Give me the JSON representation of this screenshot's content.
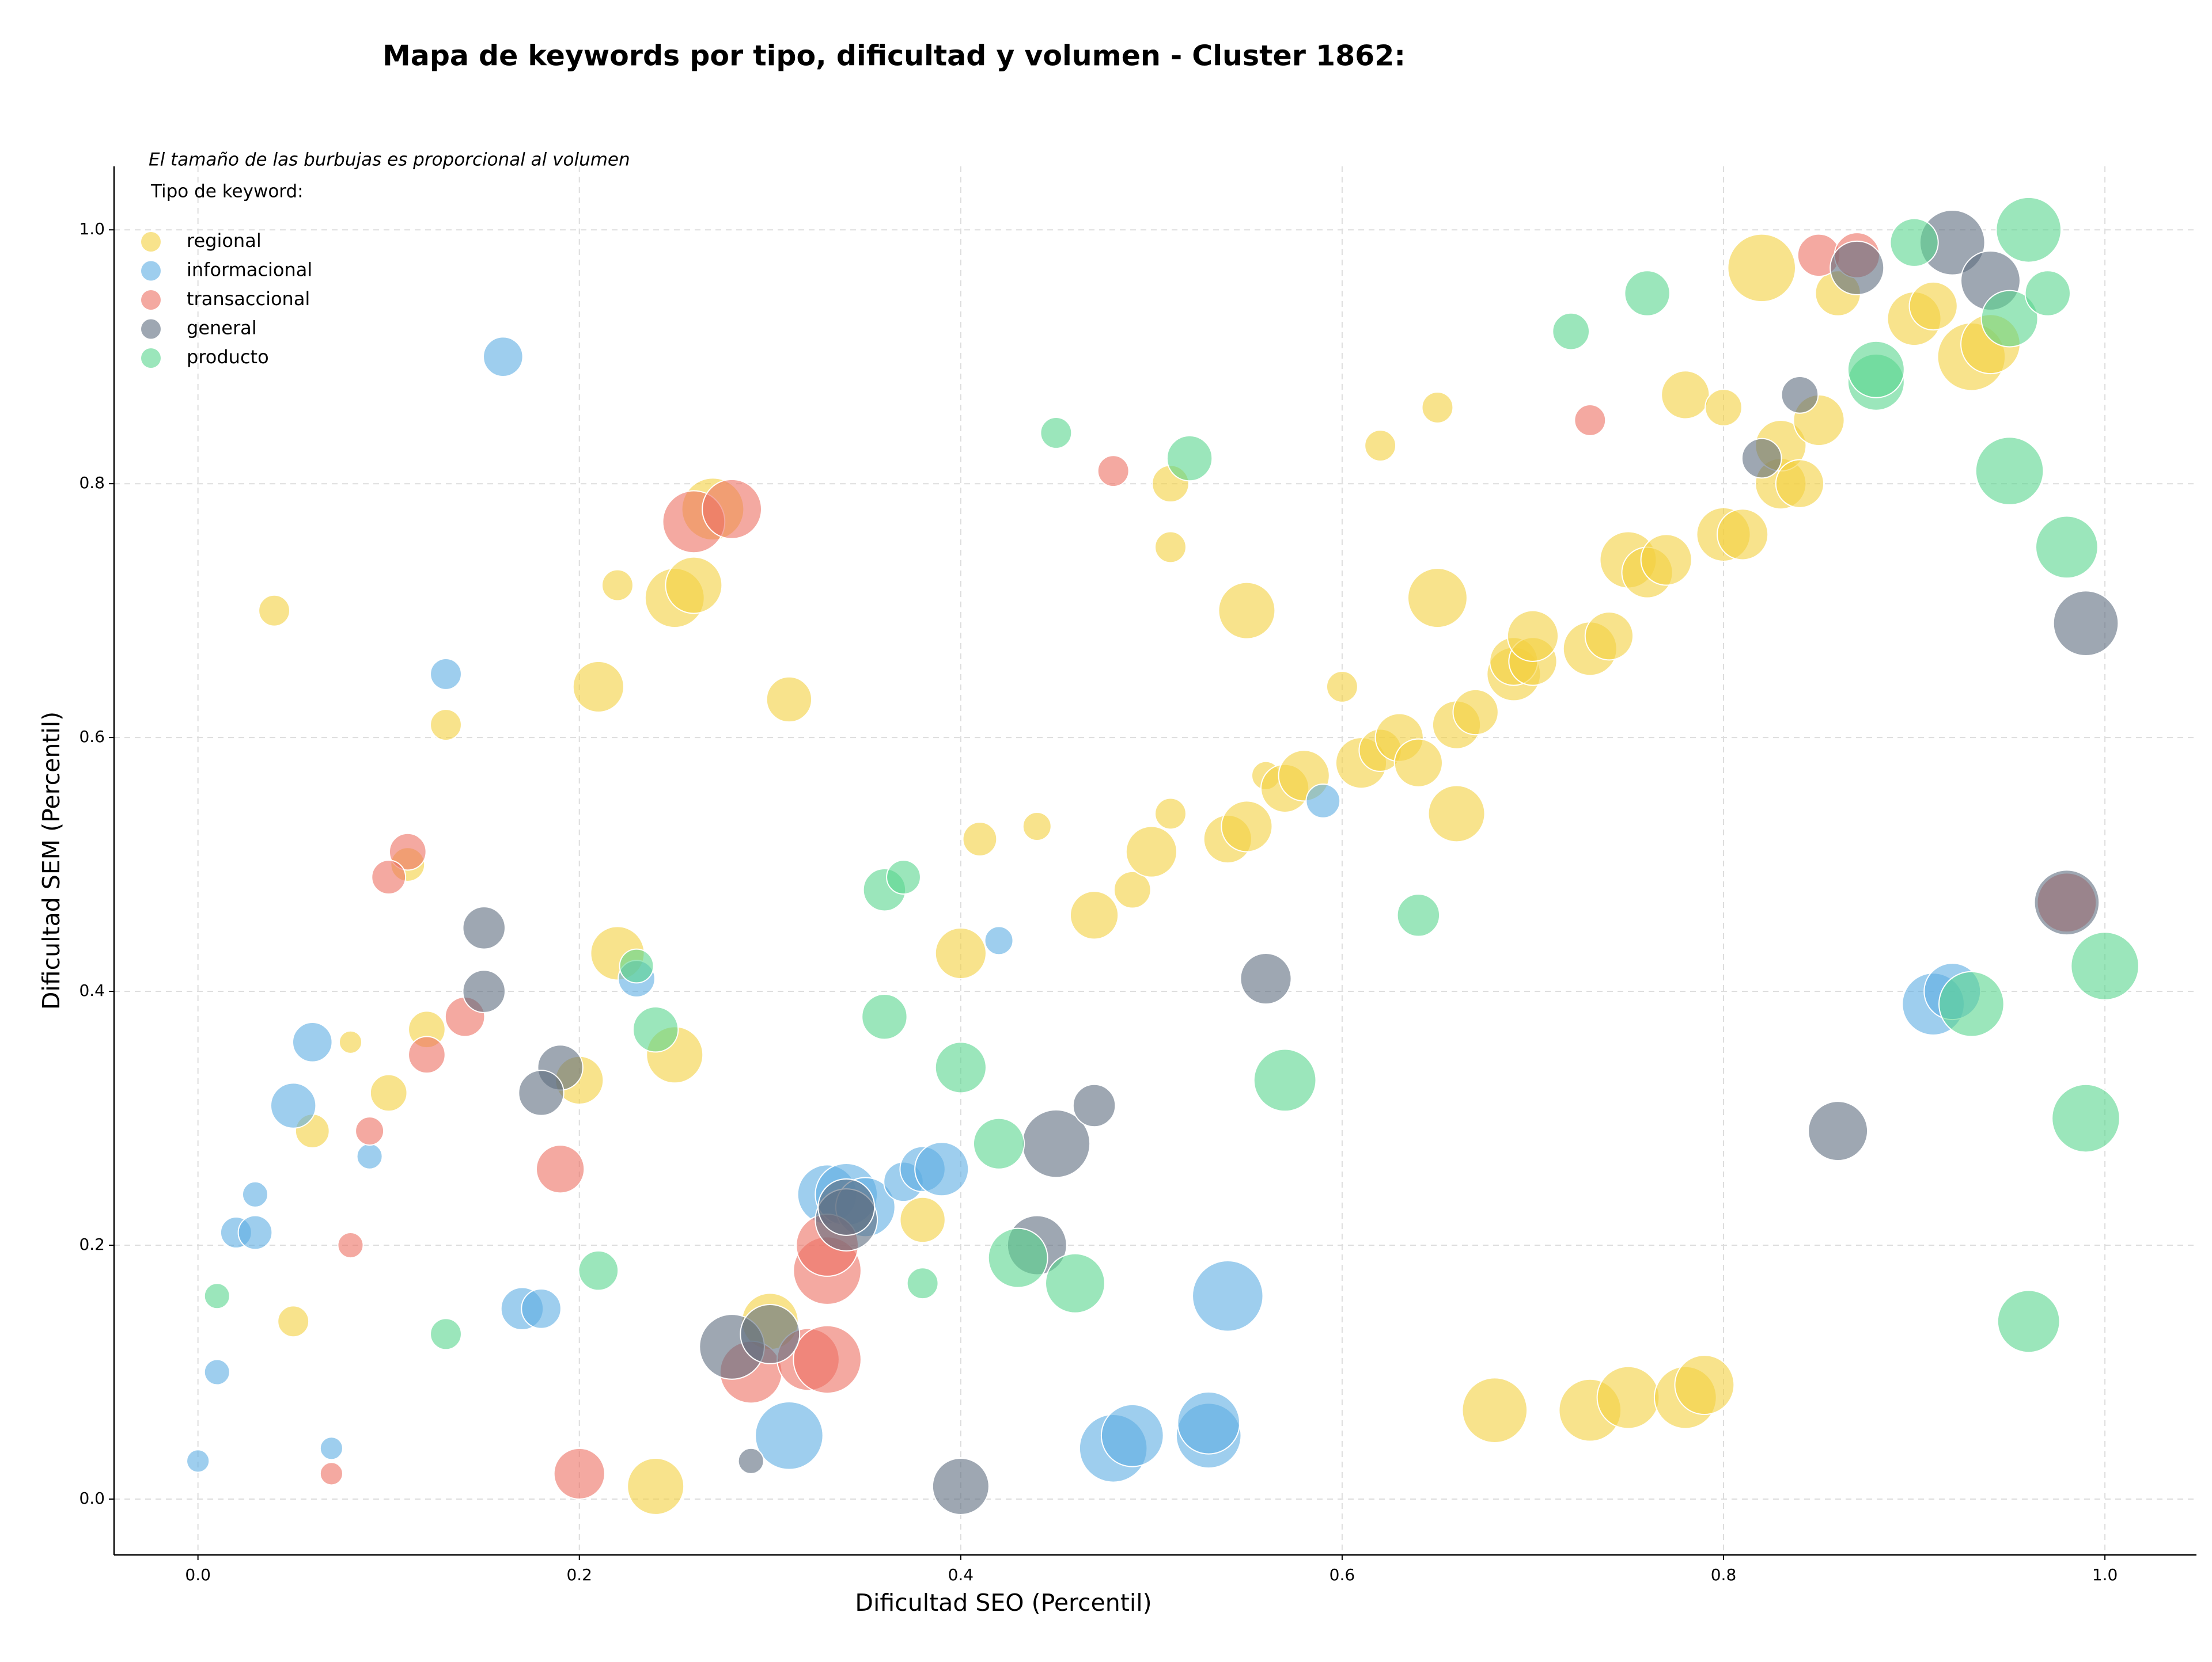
{
  "chart_data": {
    "type": "scatter",
    "title": "Mapa de keywords por tipo, dificultad y volumen - Cluster 1862:",
    "annotation": "El tamaño de las burbujas es proporcional al volumen",
    "legend_title": "Tipo de keyword:",
    "legend_position": "upper left",
    "x_label": "Dificultad SEO (Percentil)",
    "y_label": "Dificultad SEM (Percentil)",
    "xlim": [
      -0.044,
      1.048
    ],
    "ylim": [
      -0.044,
      1.05
    ],
    "xticks": [
      {
        "value": 0,
        "label": "0.0"
      },
      0.2,
      0.4,
      0.6,
      0.8,
      {
        "value": 1,
        "label": "1.0"
      }
    ],
    "yticks": [
      {
        "value": 0,
        "label": "0.0"
      },
      0.2,
      0.4,
      0.6,
      0.8,
      {
        "value": 1,
        "label": "1.0"
      }
    ],
    "grid": true,
    "series": [
      {
        "name": "regional",
        "color": "#f4d03f",
        "x": [
          0.04,
          0.08,
          0.05,
          0.06,
          0.1,
          0.11,
          0.12,
          0.13,
          0.2,
          0.21,
          0.22,
          0.22,
          0.25,
          0.25,
          0.26,
          0.27,
          0.24,
          0.31,
          0.3,
          0.38,
          0.4,
          0.41,
          0.44,
          0.47,
          0.49,
          0.5,
          0.51,
          0.51,
          0.51,
          0.54,
          0.55,
          0.55,
          0.56,
          0.57,
          0.58,
          0.6,
          0.61,
          0.62,
          0.63,
          0.64,
          0.62,
          0.65,
          0.65,
          0.66,
          0.66,
          0.67,
          0.69,
          0.69,
          0.7,
          0.7,
          0.73,
          0.74,
          0.75,
          0.76,
          0.77,
          0.78,
          0.8,
          0.8,
          0.81,
          0.83,
          0.83,
          0.84,
          0.85,
          0.86,
          0.82,
          0.9,
          0.91,
          0.93,
          0.94,
          0.68,
          0.73,
          0.75,
          0.78,
          0.79
        ],
        "values": [
          0.7,
          0.36,
          0.14,
          0.29,
          0.32,
          0.5,
          0.37,
          0.61,
          0.33,
          0.64,
          0.72,
          0.43,
          0.35,
          0.71,
          0.72,
          0.78,
          0.01,
          0.63,
          0.14,
          0.22,
          0.43,
          0.52,
          0.53,
          0.46,
          0.48,
          0.51,
          0.8,
          0.75,
          0.54,
          0.52,
          0.53,
          0.7,
          0.57,
          0.56,
          0.57,
          0.64,
          0.58,
          0.59,
          0.6,
          0.58,
          0.83,
          0.86,
          0.71,
          0.61,
          0.54,
          0.62,
          0.65,
          0.66,
          0.66,
          0.68,
          0.67,
          0.68,
          0.74,
          0.73,
          0.74,
          0.87,
          0.86,
          0.76,
          0.76,
          0.8,
          0.83,
          0.8,
          0.85,
          0.95,
          0.97,
          0.93,
          0.94,
          0.9,
          0.91,
          0.07,
          0.07,
          0.08,
          0.08,
          0.09
        ],
        "sizes": [
          11,
          8,
          11,
          12,
          13,
          12,
          13,
          11,
          17,
          18,
          11,
          19,
          20,
          21,
          20,
          22,
          20,
          16,
          20,
          16,
          18,
          12,
          10,
          17,
          13,
          18,
          13,
          11,
          11,
          17,
          18,
          20,
          10,
          17,
          18,
          11,
          18,
          15,
          17,
          17,
          11,
          11,
          21,
          17,
          20,
          16,
          19,
          17,
          17,
          18,
          19,
          17,
          20,
          18,
          18,
          17,
          13,
          19,
          18,
          18,
          18,
          17,
          18,
          16,
          24,
          19,
          17,
          24,
          21,
          23,
          22,
          22,
          22,
          21
        ]
      },
      {
        "name": "informacional",
        "color": "#5dade2",
        "x": [
          0.16,
          0.13,
          0.06,
          0.05,
          0.09,
          0.03,
          0.02,
          0.03,
          0.01,
          0.0,
          0.07,
          0.17,
          0.18,
          0.23,
          0.42,
          0.59,
          0.31,
          0.33,
          0.34,
          0.35,
          0.37,
          0.38,
          0.39,
          0.48,
          0.49,
          0.53,
          0.53,
          0.54,
          0.91,
          0.92
        ],
        "values": [
          0.9,
          0.65,
          0.36,
          0.31,
          0.27,
          0.24,
          0.21,
          0.21,
          0.1,
          0.03,
          0.04,
          0.15,
          0.15,
          0.41,
          0.44,
          0.55,
          0.05,
          0.24,
          0.24,
          0.23,
          0.25,
          0.26,
          0.26,
          0.04,
          0.05,
          0.05,
          0.06,
          0.16,
          0.39,
          0.4
        ],
        "sizes": [
          14,
          11,
          14,
          16,
          9,
          9,
          11,
          12,
          9,
          8,
          8,
          15,
          14,
          13,
          10,
          12,
          24,
          21,
          22,
          21,
          14,
          16,
          19,
          24,
          22,
          23,
          22,
          25,
          22,
          20
        ]
      },
      {
        "name": "transaccional",
        "color": "#ec7063",
        "x": [
          0.11,
          0.1,
          0.12,
          0.14,
          0.09,
          0.08,
          0.07,
          0.19,
          0.2,
          0.26,
          0.28,
          0.48,
          0.29,
          0.32,
          0.33,
          0.33,
          0.33,
          0.73,
          0.85,
          0.87,
          0.98
        ],
        "values": [
          0.51,
          0.49,
          0.35,
          0.38,
          0.29,
          0.2,
          0.02,
          0.26,
          0.02,
          0.77,
          0.78,
          0.81,
          0.1,
          0.11,
          0.11,
          0.18,
          0.2,
          0.85,
          0.98,
          0.98,
          0.47
        ],
        "sizes": [
          13,
          12,
          13,
          14,
          10,
          9,
          8,
          17,
          18,
          22,
          21,
          11,
          22,
          22,
          24,
          24,
          22,
          11,
          15,
          16,
          21
        ]
      },
      {
        "name": "general",
        "color": "#5d6d7e",
        "x": [
          0.15,
          0.15,
          0.19,
          0.18,
          0.28,
          0.3,
          0.29,
          0.34,
          0.34,
          0.44,
          0.45,
          0.47,
          0.4,
          0.56,
          0.86,
          0.82,
          0.84,
          0.87,
          0.92,
          0.94,
          0.99,
          0.98
        ],
        "values": [
          0.45,
          0.4,
          0.34,
          0.32,
          0.12,
          0.13,
          0.03,
          0.22,
          0.23,
          0.2,
          0.28,
          0.31,
          0.01,
          0.41,
          0.29,
          0.82,
          0.87,
          0.97,
          0.99,
          0.96,
          0.69,
          0.47
        ],
        "sizes": [
          15,
          15,
          16,
          16,
          23,
          21,
          9,
          22,
          20,
          21,
          24,
          15,
          20,
          18,
          21,
          14,
          13,
          19,
          23,
          21,
          23,
          23
        ]
      },
      {
        "name": "producto",
        "color": "#58d68d",
        "x": [
          0.01,
          0.13,
          0.21,
          0.23,
          0.24,
          0.36,
          0.36,
          0.37,
          0.38,
          0.4,
          0.42,
          0.43,
          0.46,
          0.45,
          0.52,
          0.57,
          0.64,
          0.72,
          0.76,
          0.88,
          0.88,
          0.9,
          0.96,
          0.95,
          0.97,
          0.95,
          0.98,
          1.0,
          0.93,
          0.99,
          0.96
        ],
        "values": [
          0.16,
          0.13,
          0.18,
          0.42,
          0.37,
          0.38,
          0.48,
          0.49,
          0.17,
          0.34,
          0.28,
          0.19,
          0.17,
          0.84,
          0.82,
          0.33,
          0.46,
          0.92,
          0.95,
          0.88,
          0.89,
          0.99,
          1.0,
          0.93,
          0.95,
          0.81,
          0.75,
          0.42,
          0.39,
          0.3,
          0.14
        ],
        "sizes": [
          9,
          11,
          14,
          12,
          16,
          16,
          15,
          12,
          11,
          18,
          18,
          21,
          21,
          11,
          16,
          22,
          15,
          13,
          16,
          20,
          20,
          17,
          23,
          20,
          16,
          24,
          22,
          24,
          23,
          24,
          22
        ]
      }
    ]
  }
}
